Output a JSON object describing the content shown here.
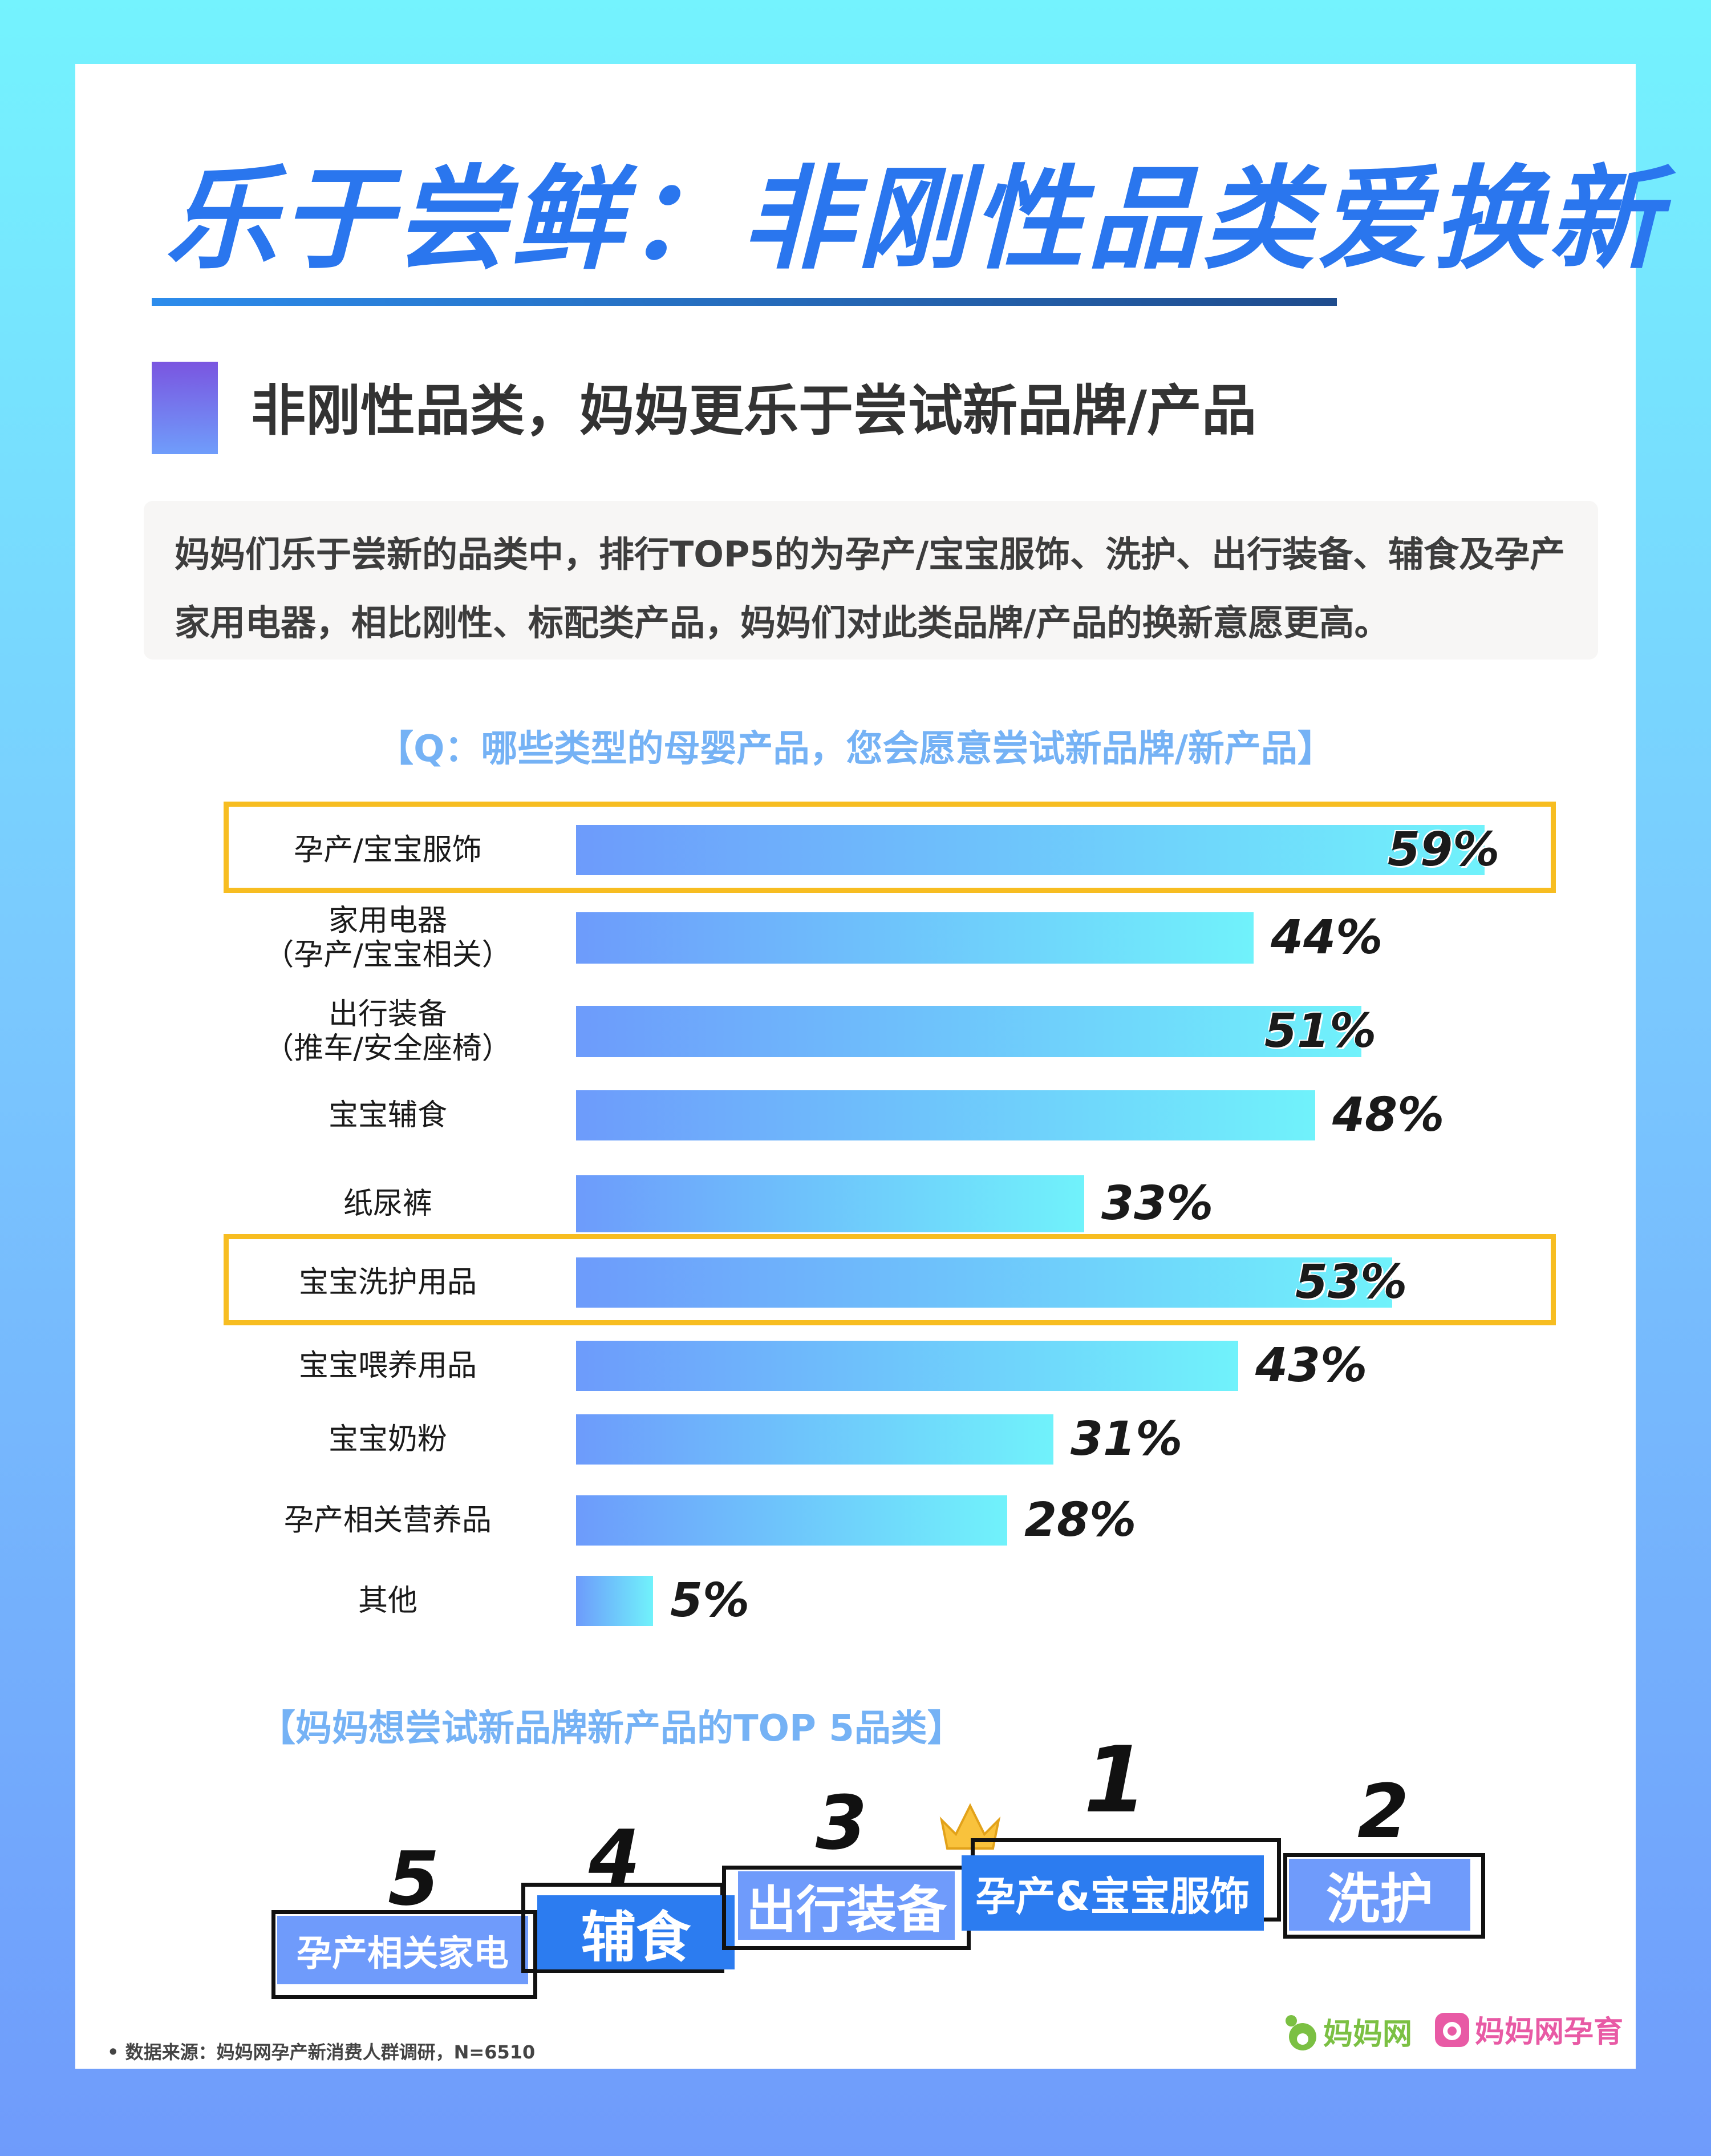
{
  "header": {
    "title": "乐于尝鲜：非刚性品类爱换新",
    "subtitle": "非刚性品类，妈妈更乐于尝试新品牌/产品"
  },
  "intro": {
    "text": "妈妈们乐于尝新的品类中，排行TOP5的为孕产/宝宝服饰、洗护、出行装备、辅食及孕产家用电器，相比刚性、标配类产品，妈妈们对此类品牌/产品的换新意愿更高。"
  },
  "chart_data": {
    "type": "bar",
    "orientation": "horizontal",
    "title": "【Q：哪些类型的母婴产品，您会愿意尝试新品牌/新产品】",
    "categories": [
      [
        "孕产/宝宝服饰"
      ],
      [
        "家用电器",
        "（孕产/宝宝相关）"
      ],
      [
        "出行装备",
        "（推车/安全座椅）"
      ],
      [
        "宝宝辅食"
      ],
      [
        "纸尿裤"
      ],
      [
        "宝宝洗护用品"
      ],
      [
        "宝宝喂养用品"
      ],
      [
        "宝宝奶粉"
      ],
      [
        "孕产相关营养品"
      ],
      [
        "其他"
      ]
    ],
    "values": [
      59,
      44,
      51,
      48,
      33,
      53,
      43,
      31,
      28,
      5
    ],
    "value_labels": [
      "59%",
      "44%",
      "51%",
      "48%",
      "33%",
      "53%",
      "43%",
      "31%",
      "28%",
      "5%"
    ],
    "highlighted": [
      "孕产/宝宝服饰",
      "宝宝洗护用品"
    ],
    "colors": {
      "bar_start": "#6d9bfb",
      "bar_end": "#70f2fb",
      "highlight": "#f7bd21"
    }
  },
  "top5": {
    "title": "【妈妈想尝试新品牌新产品的TOP 5品类】",
    "items": [
      {
        "rank": "5",
        "label": "孕产相关家电"
      },
      {
        "rank": "4",
        "label": "辅食"
      },
      {
        "rank": "3",
        "label": "出行装备"
      },
      {
        "rank": "1",
        "label": "孕产&宝宝服饰"
      },
      {
        "rank": "2",
        "label": "洗护"
      }
    ],
    "crown_icon": "crown-icon"
  },
  "footer": {
    "source": "•  数据来源：妈妈网孕产新消费人群调研，N=6510",
    "logo1": "妈妈网",
    "logo2": "妈妈网孕育"
  },
  "colors": {
    "title": "#2a76ee",
    "accent_blue": "#2c7cf0",
    "step_light": "#6f9bfb"
  }
}
